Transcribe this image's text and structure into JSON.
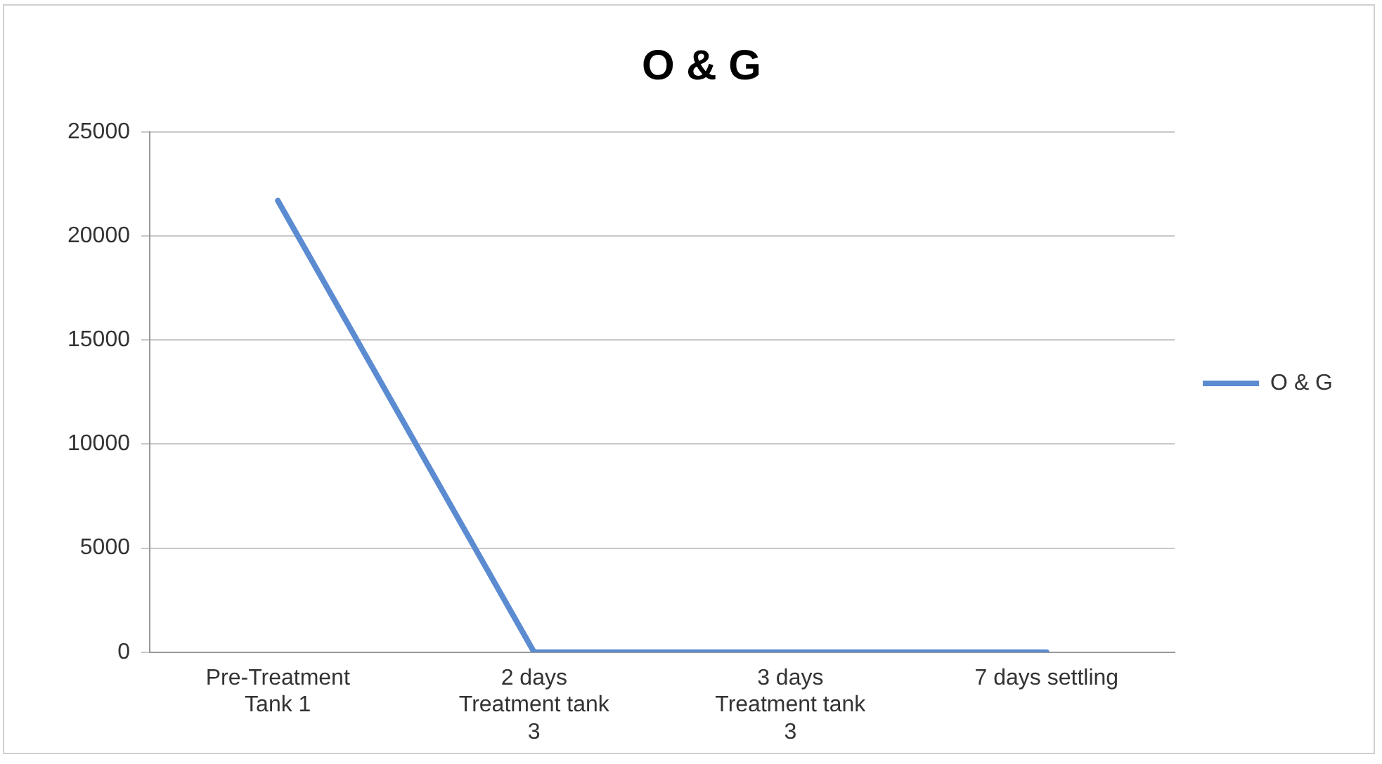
{
  "chart_data": {
    "type": "line",
    "title": "O & G",
    "categories": [
      "Pre-Treatment Tank 1",
      "2 days Treatment tank 3",
      "3 days Treatment tank 3",
      "7 days settling"
    ],
    "series": [
      {
        "name": "O & G",
        "color": "#5b8bd0",
        "values": [
          21700,
          0,
          0,
          0
        ]
      }
    ],
    "ylim": [
      0,
      25000
    ],
    "yticks": [
      0,
      5000,
      10000,
      15000,
      20000,
      25000
    ],
    "grid": "y",
    "legend": "right",
    "marker": "none",
    "line_style": "solid"
  }
}
